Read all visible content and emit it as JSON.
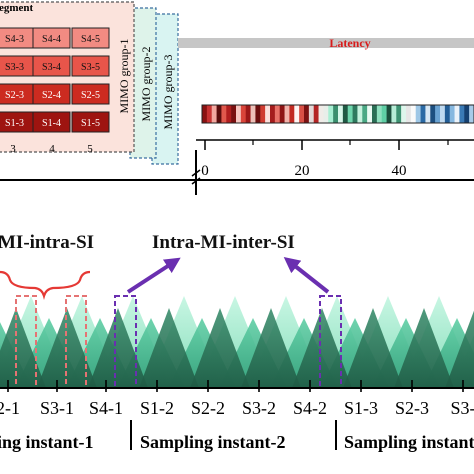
{
  "segment_box": {
    "title": "egment",
    "rows": [
      [
        "S4-3",
        "S4-4",
        "S4-5"
      ],
      [
        "S3-3",
        "S3-4",
        "S3-5"
      ],
      [
        "S2-3",
        "S2-4",
        "S2-5"
      ],
      [
        "S1-3",
        "S1-4",
        "S1-5"
      ]
    ],
    "row_colors": [
      "#f28b82",
      "#e8554a",
      "#cc2b20",
      "#9e1410"
    ],
    "column_labels": [
      "3",
      "4",
      "5"
    ]
  },
  "mimo_groups": [
    "MIMO group-1",
    "MIMO group-2",
    "MIMO group-3"
  ],
  "latency": {
    "label": "Latency",
    "label_color": "#d81b1b"
  },
  "timeline": {
    "ticks": [
      "0",
      "20",
      "40"
    ]
  },
  "labels": {
    "intra": "MI-intra-SI",
    "inter": "Intra-MI-inter-SI"
  },
  "samples": [
    "2-1",
    "S3-1",
    "S4-1",
    "S1-2",
    "S2-2",
    "S3-2",
    "S4-2",
    "S1-3",
    "S2-3",
    "S3-"
  ],
  "sampling_instants": [
    "ling instant-1",
    "Sampling instant-2",
    "Sampling instant-"
  ],
  "colors": {
    "accent": "#6a2fb0",
    "bracket": "#e53935",
    "teal_light": "#a8efd3",
    "teal_mid": "#5fcfa5",
    "teal_dark": "#2e7a5e"
  }
}
